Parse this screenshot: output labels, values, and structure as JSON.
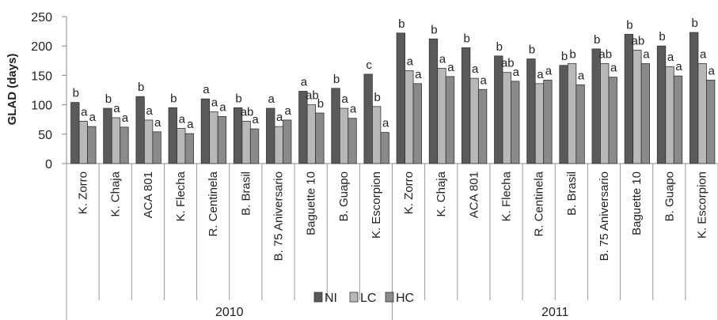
{
  "chart_data": {
    "type": "bar",
    "ylabel": "GLAD (days)",
    "ylim": [
      0,
      250
    ],
    "yticks": [
      "0",
      "50",
      "100",
      "150",
      "200",
      "250"
    ],
    "grid": false,
    "legend_position": "bottom",
    "colors": {
      "NI": "#5a5a5a",
      "LC": "#b8b8b8",
      "HC": "#8a8a8a"
    },
    "groups": [
      {
        "label": "2010",
        "categories": [
          "K. Zorro",
          "K. Chaja",
          "ACA 801",
          "K. Flecha",
          "R. Centinela",
          "B. Brasil",
          "B. 75 Aniversario",
          "Baguette 10",
          "B. Guapo",
          "K. Escorpion"
        ]
      },
      {
        "label": "2011",
        "categories": [
          "K. Zorro",
          "K. Chaja",
          "ACA 801",
          "K. Flecha",
          "R. Centinela",
          "B. Brasil",
          "B. 75 Aniversario",
          "Baguette 10",
          "B. Guapo",
          "K. Escorpion"
        ]
      }
    ],
    "series": [
      {
        "name": "NI",
        "values": [
          104,
          94,
          114,
          95,
          110,
          95,
          94,
          123,
          128,
          152,
          222,
          212,
          197,
          183,
          178,
          167,
          195,
          220,
          200,
          223
        ],
        "labels": [
          "b",
          "b",
          "b",
          "b",
          "a",
          "b",
          "a",
          "a",
          "b",
          "c",
          "b",
          "b",
          "b",
          "b",
          "b",
          "b",
          "b",
          "b",
          "b",
          "b"
        ]
      },
      {
        "name": "LC",
        "values": [
          72,
          78,
          74,
          60,
          88,
          72,
          63,
          100,
          94,
          97,
          158,
          162,
          145,
          155,
          136,
          170,
          170,
          193,
          165,
          170
        ],
        "labels": [
          "a",
          "a",
          "a",
          "a",
          "a",
          "ab",
          "a",
          "ab",
          "a",
          "b",
          "a",
          "a",
          "a",
          "ab",
          "a",
          "b",
          "ab",
          "ab",
          "a",
          "a"
        ]
      },
      {
        "name": "HC",
        "values": [
          63,
          62,
          54,
          51,
          80,
          59,
          74,
          86,
          77,
          53,
          136,
          148,
          126,
          140,
          142,
          134,
          147,
          170,
          149,
          142
        ],
        "labels": [
          "a",
          "a",
          "a",
          "a",
          "a",
          "a",
          "a",
          "b",
          "a",
          "a",
          "a",
          "a",
          "a",
          "a",
          "a",
          "a",
          "a",
          "a",
          "a",
          "a"
        ]
      }
    ]
  }
}
